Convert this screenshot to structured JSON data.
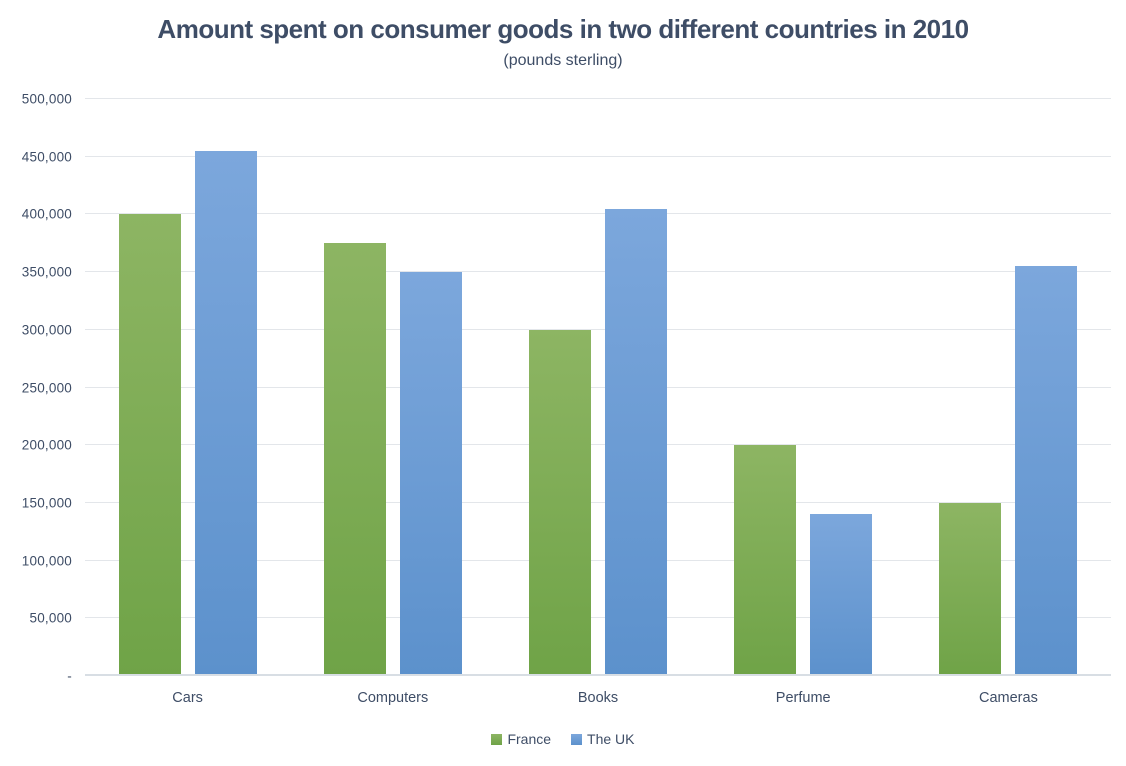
{
  "chart_data": {
    "type": "bar",
    "title": "Amount spent on consumer goods in two different countries in 2010",
    "subtitle": "(pounds sterling)",
    "categories": [
      "Cars",
      "Computers",
      "Books",
      "Perfume",
      "Cameras"
    ],
    "series": [
      {
        "name": "France",
        "color_top": "#8DB563",
        "color_bottom": "#6FA347",
        "values": [
          400000,
          375000,
          300000,
          200000,
          150000
        ]
      },
      {
        "name": "The UK",
        "color_top": "#7CA7DC",
        "color_bottom": "#5C91CC",
        "values": [
          455000,
          350000,
          405000,
          140000,
          355000
        ]
      }
    ],
    "ylim": [
      0,
      500000
    ],
    "ytick_step": 50000,
    "yticks": [
      {
        "value": 0,
        "label": "-"
      },
      {
        "value": 50000,
        "label": "50,000"
      },
      {
        "value": 100000,
        "label": "100,000"
      },
      {
        "value": 150000,
        "label": "150,000"
      },
      {
        "value": 200000,
        "label": "200,000"
      },
      {
        "value": 250000,
        "label": "250,000"
      },
      {
        "value": 300000,
        "label": "300,000"
      },
      {
        "value": 350000,
        "label": "350,000"
      },
      {
        "value": 400000,
        "label": "400,000"
      },
      {
        "value": 450000,
        "label": "450,000"
      },
      {
        "value": 500000,
        "label": "500,000"
      }
    ],
    "grid": true,
    "legend_position": "bottom",
    "colors": {
      "text": "#3E4D66",
      "gridline": "#E3E6EA",
      "axis_line": "#D8DEE4",
      "background": "#FFFFFF"
    }
  }
}
